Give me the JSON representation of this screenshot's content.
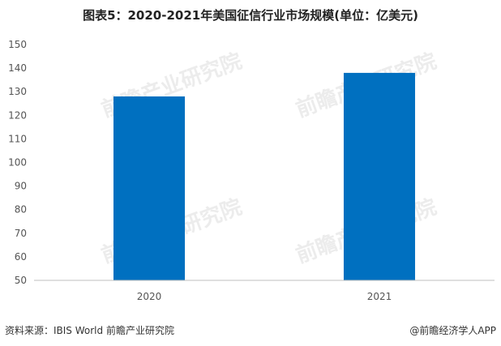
{
  "chart_data": {
    "type": "bar",
    "title": "图表5：2020-2021年美国征信行业市场规模(单位：亿美元)",
    "categories": [
      "2020",
      "2021"
    ],
    "values": [
      128,
      138
    ],
    "xlabel": "",
    "ylabel": "",
    "ylim": [
      50,
      150
    ],
    "yticks": [
      50,
      60,
      70,
      80,
      90,
      100,
      110,
      120,
      130,
      140,
      150
    ],
    "bar_color": "#0070c0",
    "grid": false,
    "legend": "none"
  },
  "footer": {
    "source": "资料来源：IBIS World 前瞻产业研究院",
    "brand": "@前瞻经济学人APP"
  },
  "watermark": "前瞻产业研究院"
}
